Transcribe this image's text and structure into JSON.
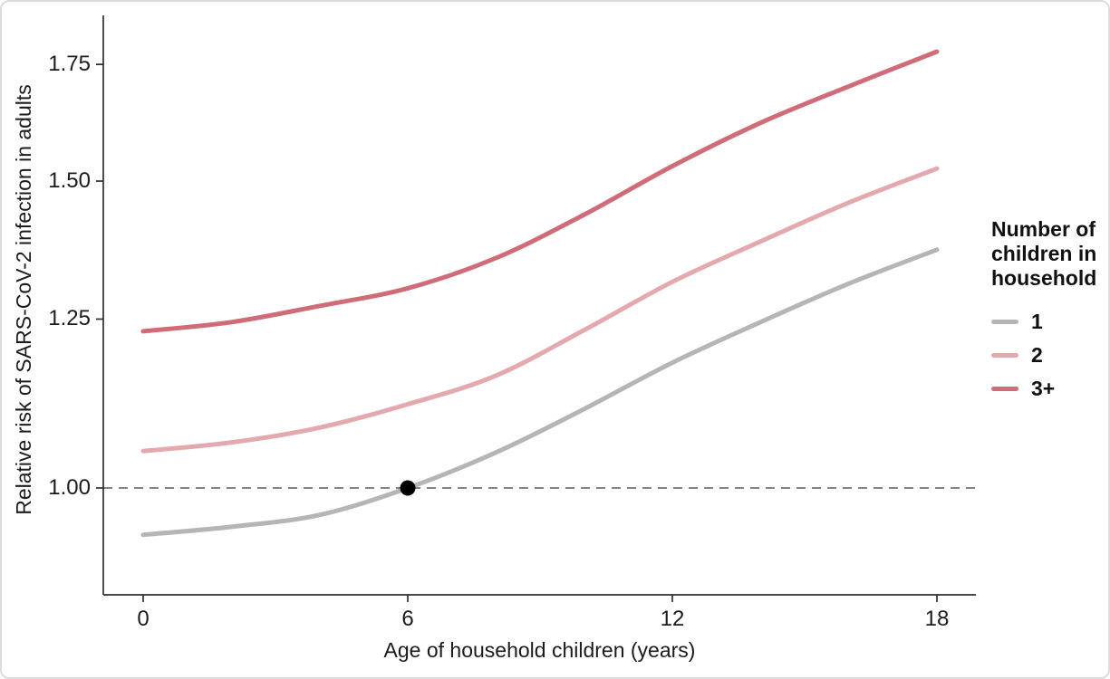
{
  "figure": {
    "y_axis_title": "Relative risk of SARS-CoV-2 infection in adults",
    "x_axis_title": "Age of household children (years)",
    "legend": {
      "title": "Number of children in household",
      "items": [
        {
          "label": "1",
          "color": "#b5b5b5"
        },
        {
          "label": "2",
          "color": "#e4a9ae"
        },
        {
          "label": "3+",
          "color": "#d06c77"
        }
      ]
    },
    "colors": {
      "axis": "#2e2e2e",
      "text": "#1b1b1b",
      "reference_line": "#5a5a5a",
      "marker": "#000000",
      "series_1": "#b5b5b5",
      "series_2": "#e4a9ae",
      "series_3plus": "#d06c77"
    }
  },
  "chart_data": {
    "type": "line",
    "title": "",
    "xlabel": "Age of household children (years)",
    "ylabel": "Relative risk of SARS-CoV-2 infection in adults",
    "x": [
      0,
      2,
      4,
      6,
      8,
      10,
      12,
      14,
      16,
      18
    ],
    "series": [
      {
        "name": "1",
        "color": "#b5b5b5",
        "values": [
          0.94,
          0.95,
          0.965,
          1.0,
          1.048,
          1.11,
          1.18,
          1.245,
          1.31,
          1.37
        ]
      },
      {
        "name": "2",
        "color": "#e4a9ae",
        "values": [
          1.05,
          1.062,
          1.083,
          1.117,
          1.16,
          1.232,
          1.313,
          1.385,
          1.458,
          1.525
        ]
      },
      {
        "name": "3+",
        "color": "#d06c77",
        "values": [
          1.23,
          1.245,
          1.272,
          1.302,
          1.355,
          1.435,
          1.53,
          1.62,
          1.7,
          1.78
        ]
      }
    ],
    "yscale": "log",
    "xlim": [
      0,
      18
    ],
    "ylim": [
      0.87,
      1.86
    ],
    "xticks": [
      0,
      6,
      12,
      18
    ],
    "xtick_labels": [
      "0",
      "6",
      "12",
      "18"
    ],
    "yticks": [
      1.0,
      1.25,
      1.5,
      1.75
    ],
    "ytick_labels": [
      "1.00",
      "1.25",
      "1.50",
      "1.75"
    ],
    "grid": false,
    "legend_position": "right",
    "reference_hline": 1.0,
    "annotation_point": {
      "x": 6,
      "y": 1.0
    }
  }
}
